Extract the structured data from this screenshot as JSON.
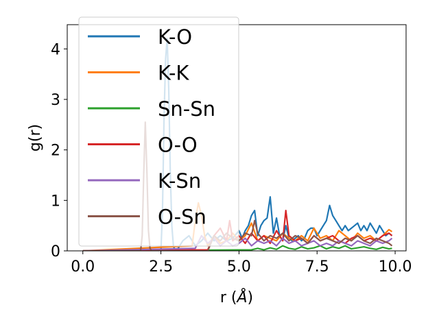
{
  "chart_data": {
    "type": "line",
    "xlabel_main": "r (",
    "xlabel_unit": "Å",
    "xlabel_close": ")",
    "ylabel": "g(r)",
    "xlim": [
      -0.5,
      10.35
    ],
    "ylim": [
      0,
      4.48
    ],
    "xticks": [
      0.0,
      2.5,
      5.0,
      7.5,
      10.0
    ],
    "xtick_labels": [
      "0.0",
      "2.5",
      "5.0",
      "7.5",
      "10.0"
    ],
    "yticks": [
      0,
      1,
      2,
      3,
      4
    ],
    "ytick_labels": [
      "0",
      "1",
      "2",
      "3",
      "4"
    ],
    "grid": false,
    "legend_position": "top-left",
    "series": [
      {
        "name": "K-O",
        "color": "#1f77b4",
        "x": [
          0,
          2.5,
          2.55,
          2.6,
          2.65,
          2.7,
          2.75,
          2.8,
          2.85,
          2.9,
          2.95,
          3.0,
          3.2,
          3.4,
          3.6,
          3.8,
          4.0,
          4.2,
          4.4,
          4.6,
          4.8,
          5.0,
          5.1,
          5.2,
          5.3,
          5.4,
          5.5,
          5.6,
          5.7,
          5.8,
          5.9,
          6.0,
          6.1,
          6.2,
          6.3,
          6.4,
          6.5,
          6.6,
          6.7,
          6.8,
          6.9,
          7.0,
          7.1,
          7.2,
          7.3,
          7.4,
          7.5,
          7.6,
          7.7,
          7.8,
          7.9,
          8.0,
          8.1,
          8.2,
          8.3,
          8.4,
          8.5,
          8.6,
          8.7,
          8.8,
          8.9,
          9.0,
          9.1,
          9.2,
          9.3,
          9.4,
          9.5,
          9.6,
          9.7,
          9.8,
          9.9
        ],
        "y": [
          0,
          0,
          0.8,
          2.6,
          3.8,
          4.2,
          3.2,
          1.6,
          0.5,
          0.1,
          0,
          0,
          0.2,
          0.3,
          0.1,
          0.2,
          0.35,
          0.2,
          0.3,
          0.2,
          0.25,
          0.4,
          0.25,
          0.4,
          0.5,
          0.7,
          0.8,
          0.3,
          0.5,
          0.6,
          0.65,
          1.07,
          0.35,
          0.65,
          0.3,
          0.2,
          0.5,
          0.25,
          0.2,
          0.25,
          0.3,
          0.2,
          0.25,
          0.4,
          0.45,
          0.45,
          0.3,
          0.4,
          0.5,
          0.6,
          0.9,
          0.7,
          0.6,
          0.5,
          0.4,
          0.5,
          0.4,
          0.45,
          0.5,
          0.55,
          0.4,
          0.5,
          0.4,
          0.55,
          0.45,
          0.35,
          0.5,
          0.4,
          0.3,
          0.35,
          0.3
        ]
      },
      {
        "name": "K-K",
        "color": "#ff7f0e",
        "x": [
          0,
          3.5,
          3.6,
          3.7,
          3.8,
          3.9,
          4.0,
          4.2,
          4.4,
          4.6,
          4.8,
          5.0,
          5.2,
          5.4,
          5.6,
          5.8,
          6.0,
          6.2,
          6.4,
          6.6,
          6.8,
          7.0,
          7.2,
          7.4,
          7.6,
          7.8,
          8.0,
          8.2,
          8.4,
          8.6,
          8.8,
          9.0,
          9.2,
          9.4,
          9.6,
          9.8,
          9.9
        ],
        "y": [
          0,
          0.1,
          0.6,
          0.95,
          0.7,
          0.3,
          0.1,
          0.3,
          0.15,
          0.2,
          0.35,
          0.2,
          0.3,
          0.55,
          0.2,
          0.3,
          0.25,
          0.2,
          0.35,
          0.25,
          0.2,
          0.3,
          0.2,
          0.45,
          0.25,
          0.3,
          0.2,
          0.4,
          0.3,
          0.2,
          0.35,
          0.25,
          0.3,
          0.2,
          0.3,
          0.42,
          0.38
        ]
      },
      {
        "name": "Sn-Sn",
        "color": "#2ca02c",
        "x": [
          0,
          5.4,
          5.6,
          5.8,
          6.0,
          6.2,
          6.4,
          6.6,
          6.8,
          7.0,
          7.2,
          7.4,
          7.6,
          7.8,
          8.0,
          8.2,
          8.4,
          8.6,
          8.8,
          9.0,
          9.2,
          9.4,
          9.6,
          9.8,
          9.9
        ],
        "y": [
          0,
          0.02,
          0.05,
          0.02,
          0.06,
          0.03,
          0.1,
          0.05,
          0.03,
          0.08,
          0.04,
          0.06,
          0.1,
          0.04,
          0.08,
          0.05,
          0.1,
          0.04,
          0.06,
          0.08,
          0.05,
          0.03,
          0.07,
          0.04,
          0.05
        ]
      },
      {
        "name": "O-O",
        "color": "#d62728",
        "x": [
          0,
          4.0,
          4.2,
          4.4,
          4.6,
          4.7,
          4.8,
          5.0,
          5.2,
          5.4,
          5.6,
          5.8,
          6.0,
          6.2,
          6.4,
          6.5,
          6.6,
          6.8,
          7.0,
          7.2,
          7.4,
          7.6,
          7.8,
          8.0,
          8.2,
          8.4,
          8.6,
          8.8,
          9.0,
          9.2,
          9.4,
          9.6,
          9.8,
          9.9
        ],
        "y": [
          0,
          0.02,
          0.3,
          0.45,
          0.2,
          0.6,
          0.2,
          0.3,
          0.15,
          0.35,
          0.2,
          0.3,
          0.15,
          0.4,
          0.2,
          0.8,
          0.3,
          0.2,
          0.25,
          0.15,
          0.3,
          0.2,
          0.25,
          0.3,
          0.2,
          0.15,
          0.25,
          0.3,
          0.2,
          0.25,
          0.2,
          0.3,
          0.35,
          0.3
        ]
      },
      {
        "name": "K-Sn",
        "color": "#9467bd",
        "x": [
          0,
          3.6,
          3.8,
          4.0,
          4.2,
          4.4,
          4.6,
          4.8,
          5.0,
          5.2,
          5.4,
          5.6,
          5.8,
          6.0,
          6.2,
          6.4,
          6.6,
          6.8,
          7.0,
          7.2,
          7.4,
          7.6,
          7.8,
          8.0,
          8.2,
          8.4,
          8.6,
          8.8,
          9.0,
          9.2,
          9.4,
          9.6,
          9.8,
          9.9
        ],
        "y": [
          0,
          0.05,
          0.3,
          0.15,
          0.25,
          0.1,
          0.2,
          0.1,
          0.15,
          0.25,
          0.1,
          0.2,
          0.15,
          0.2,
          0.1,
          0.25,
          0.15,
          0.2,
          0.1,
          0.15,
          0.2,
          0.1,
          0.15,
          0.1,
          0.2,
          0.15,
          0.1,
          0.2,
          0.15,
          0.1,
          0.2,
          0.15,
          0.2,
          0.25
        ]
      },
      {
        "name": "O-Sn",
        "color": "#8c564b",
        "x": [
          0,
          1.85,
          1.9,
          1.95,
          2.0,
          2.05,
          2.1,
          2.15,
          2.2,
          4.0,
          4.2,
          4.4,
          4.6,
          4.8,
          5.0,
          5.2,
          5.4,
          5.5,
          5.6,
          5.8,
          6.0,
          6.2,
          6.4,
          6.6,
          6.8,
          7.0,
          7.2,
          7.4,
          7.6,
          7.8,
          8.0,
          8.2,
          8.4,
          8.6,
          8.8,
          9.0,
          9.2,
          9.4,
          9.6,
          9.8,
          9.9
        ],
        "y": [
          0,
          0,
          0.3,
          1.5,
          2.55,
          1.6,
          0.4,
          0.05,
          0,
          0,
          0.3,
          0.2,
          0.35,
          0.25,
          0.2,
          0.35,
          0.3,
          0.6,
          0.35,
          0.2,
          0.3,
          0.25,
          0.35,
          0.2,
          0.3,
          0.25,
          0.15,
          0.3,
          0.2,
          0.25,
          0.2,
          0.15,
          0.25,
          0.2,
          0.3,
          0.2,
          0.15,
          0.25,
          0.2,
          0.15,
          0.1
        ]
      }
    ]
  }
}
